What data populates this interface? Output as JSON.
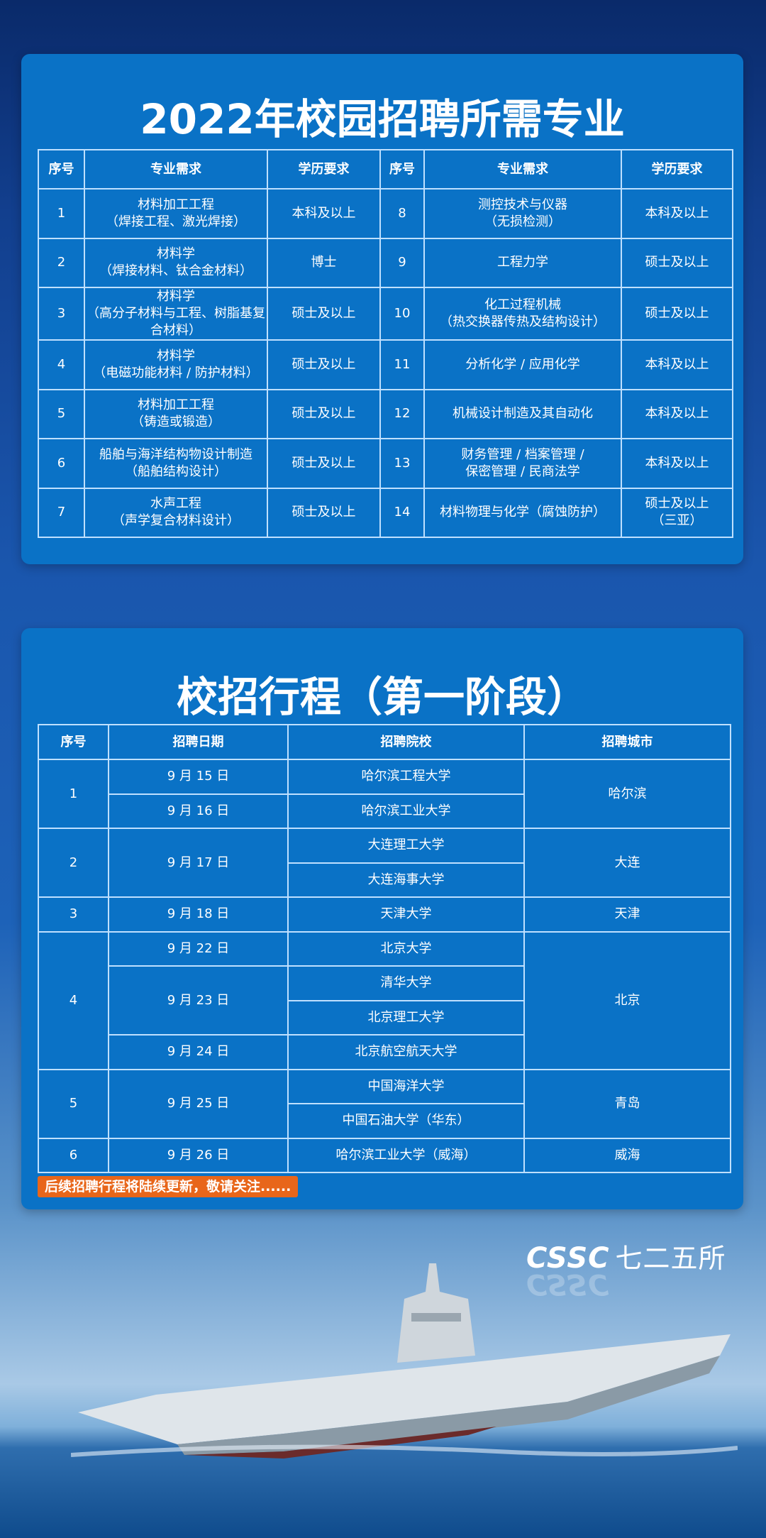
{
  "majors": {
    "title": "2022年校园招聘所需专业",
    "headers": [
      "序号",
      "专业需求",
      "学历要求",
      "序号",
      "专业需求",
      "学历要求"
    ],
    "rows": [
      {
        "no": "1",
        "major": "材料加工工程\n（焊接工程、激光焊接）",
        "degree": "本科及以上"
      },
      {
        "no": "2",
        "major": "材料学\n（焊接材料、钛合金材料）",
        "degree": "博士"
      },
      {
        "no": "3",
        "major": "材料学\n（高分子材料与工程、树脂基复合材料）",
        "degree": "硕士及以上"
      },
      {
        "no": "4",
        "major": "材料学\n（电磁功能材料 / 防护材料）",
        "degree": "硕士及以上"
      },
      {
        "no": "5",
        "major": "材料加工工程\n（铸造或锻造）",
        "degree": "硕士及以上"
      },
      {
        "no": "6",
        "major": "船舶与海洋结构物设计制造\n（船舶结构设计）",
        "degree": "硕士及以上"
      },
      {
        "no": "7",
        "major": "水声工程\n（声学复合材料设计）",
        "degree": "硕士及以上"
      },
      {
        "no": "8",
        "major": "测控技术与仪器\n（无损检测）",
        "degree": "本科及以上"
      },
      {
        "no": "9",
        "major": "工程力学",
        "degree": "硕士及以上"
      },
      {
        "no": "10",
        "major": "化工过程机械\n（热交换器传热及结构设计）",
        "degree": "硕士及以上"
      },
      {
        "no": "11",
        "major": "分析化学 / 应用化学",
        "degree": "本科及以上"
      },
      {
        "no": "12",
        "major": "机械设计制造及其自动化",
        "degree": "本科及以上"
      },
      {
        "no": "13",
        "major": "财务管理 / 档案管理 /\n保密管理 / 民商法学",
        "degree": "本科及以上"
      },
      {
        "no": "14",
        "major": "材料物理与化学（腐蚀防护）",
        "degree": "硕士及以上\n（三亚）"
      }
    ]
  },
  "schedule": {
    "title": "校招行程（第一阶段）",
    "headers": [
      "序号",
      "招聘日期",
      "招聘院校",
      "招聘城市"
    ],
    "groups": [
      {
        "no": "1",
        "city": "哈尔滨",
        "dates": [
          {
            "date": "9 月 15 日",
            "schools": [
              "哈尔滨工程大学"
            ]
          },
          {
            "date": "9 月 16 日",
            "schools": [
              "哈尔滨工业大学"
            ]
          }
        ]
      },
      {
        "no": "2",
        "city": "大连",
        "dates": [
          {
            "date": "9 月 17 日",
            "schools": [
              "大连理工大学",
              "大连海事大学"
            ]
          }
        ]
      },
      {
        "no": "3",
        "city": "天津",
        "dates": [
          {
            "date": "9 月 18 日",
            "schools": [
              "天津大学"
            ]
          }
        ]
      },
      {
        "no": "4",
        "city": "北京",
        "dates": [
          {
            "date": "9 月 22 日",
            "schools": [
              "北京大学"
            ]
          },
          {
            "date": "9 月 23 日",
            "schools": [
              "清华大学",
              "北京理工大学"
            ]
          },
          {
            "date": "9 月 24 日",
            "schools": [
              "北京航空航天大学"
            ]
          }
        ]
      },
      {
        "no": "5",
        "city": "青岛",
        "dates": [
          {
            "date": "9 月 25 日",
            "schools": [
              "中国海洋大学",
              "中国石油大学（华东）"
            ]
          }
        ]
      },
      {
        "no": "6",
        "city": "威海",
        "dates": [
          {
            "date": "9 月 26 日",
            "schools": [
              "哈尔滨工业大学（威海）"
            ]
          }
        ]
      }
    ],
    "note": "后续招聘行程将陆续更新，敬请关注......"
  },
  "logo": {
    "brand": "CSSC",
    "name": "七二五所"
  },
  "colors": {
    "panel": "#0a72c6",
    "note": "#e8661a",
    "border": "#bfe0ff"
  }
}
